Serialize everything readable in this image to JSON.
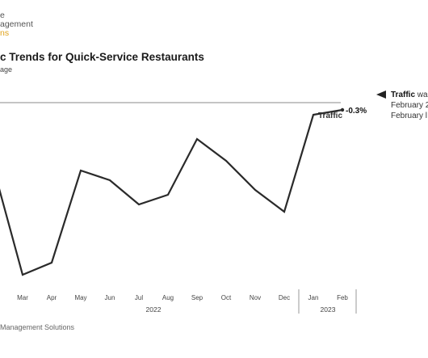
{
  "logo": {
    "line1": "e",
    "line2": "agement",
    "line3": "ns"
  },
  "chart_data": {
    "type": "line",
    "title": "c Trends for Quick-Service Restaurants",
    "subtitle": "age",
    "categories": [
      "",
      "Mar",
      "Apr",
      "May",
      "Jun",
      "Jul",
      "Aug",
      "Sep",
      "Oct",
      "Nov",
      "Dec",
      "Jan",
      "Feb"
    ],
    "year_groups": [
      {
        "label": "2022",
        "from": 1,
        "to": 10
      },
      {
        "label": "2023",
        "from": 11,
        "to": 12
      }
    ],
    "series": [
      {
        "name": "Traffic",
        "values": [
          -2.7,
          -7.1,
          -6.6,
          -2.8,
          -3.2,
          -4.2,
          -3.8,
          -1.5,
          -2.4,
          -3.6,
          -4.5,
          -0.5,
          -0.3
        ]
      }
    ],
    "ylim": [
      -7.3,
      0.5
    ],
    "reference_line": 0,
    "end_label": "-0.3%",
    "colors": {
      "line": "#2a2a2a",
      "axis": "#888888",
      "text": "#444444"
    }
  },
  "annotation": {
    "bold": "Traffic",
    "rest": " was",
    "line2": "February 2",
    "line3": "February l"
  },
  "footer": "Management Solutions"
}
